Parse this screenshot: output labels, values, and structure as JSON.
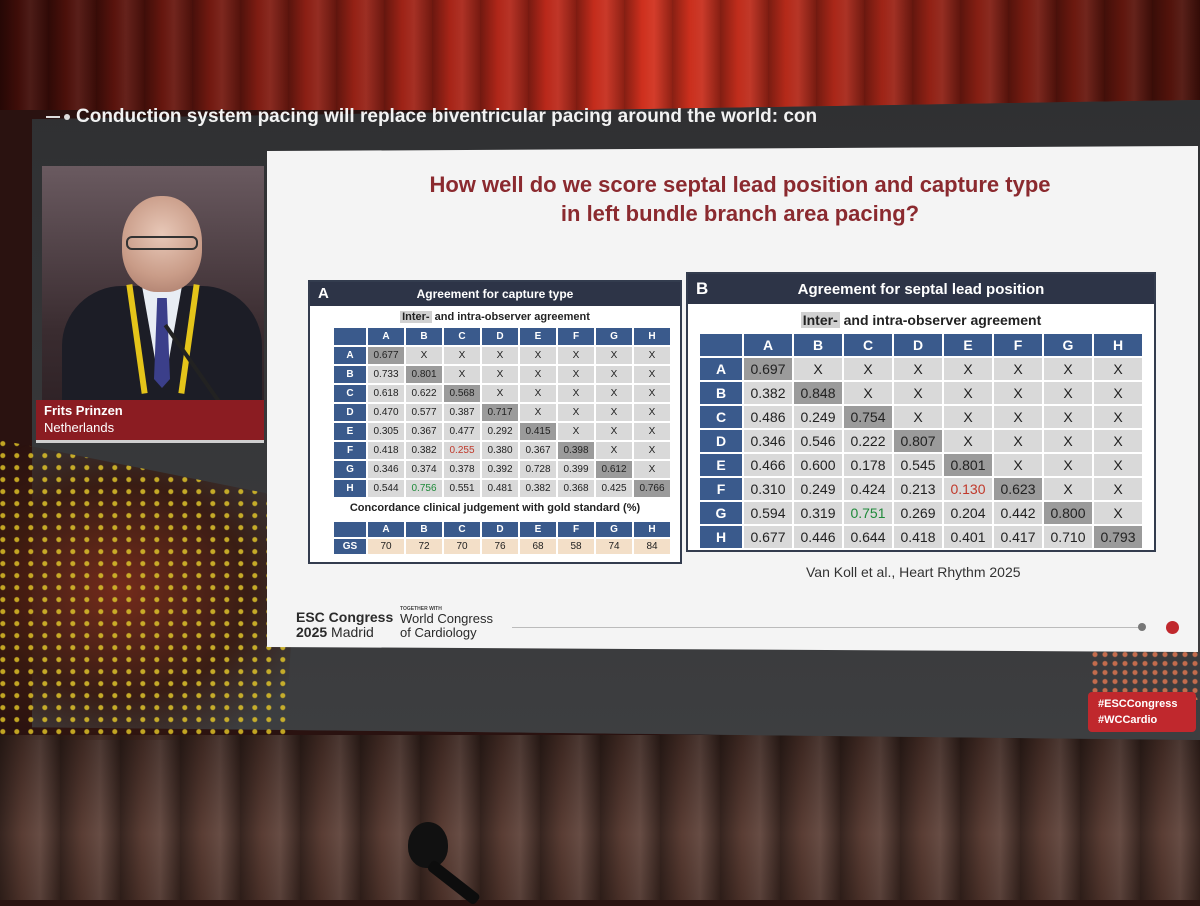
{
  "slide": {
    "session_title": "Conduction system pacing will replace biventricular pacing around the world: con",
    "content_title_line1": "How well do we score septal lead position and capture type",
    "content_title_line2": "in left bundle branch area pacing?",
    "citation": "Van Koll et al., Heart Rhythm 2025"
  },
  "speaker": {
    "name": "Frits Prinzen",
    "country": "Netherlands"
  },
  "panel_a": {
    "letter": "A",
    "title": "Agreement for capture type",
    "subtitle_highlight": "Inter-",
    "subtitle_rest": " and intra-observer agreement",
    "columns": [
      "A",
      "B",
      "C",
      "D",
      "E",
      "F",
      "G",
      "H"
    ],
    "rows": [
      {
        "label": "A",
        "cells": [
          "0.677",
          "X",
          "X",
          "X",
          "X",
          "X",
          "X",
          "X"
        ]
      },
      {
        "label": "B",
        "cells": [
          "0.733",
          "0.801",
          "X",
          "X",
          "X",
          "X",
          "X",
          "X"
        ]
      },
      {
        "label": "C",
        "cells": [
          "0.618",
          "0.622",
          "0.568",
          "X",
          "X",
          "X",
          "X",
          "X"
        ]
      },
      {
        "label": "D",
        "cells": [
          "0.470",
          "0.577",
          "0.387",
          "0.717",
          "X",
          "X",
          "X",
          "X"
        ]
      },
      {
        "label": "E",
        "cells": [
          "0.305",
          "0.367",
          "0.477",
          "0.292",
          "0.415",
          "X",
          "X",
          "X"
        ]
      },
      {
        "label": "F",
        "cells": [
          "0.418",
          "0.382",
          "0.255",
          "0.380",
          "0.367",
          "0.398",
          "X",
          "X"
        ]
      },
      {
        "label": "G",
        "cells": [
          "0.346",
          "0.374",
          "0.378",
          "0.392",
          "0.728",
          "0.399",
          "0.612",
          "X"
        ]
      },
      {
        "label": "H",
        "cells": [
          "0.544",
          "0.756",
          "0.551",
          "0.481",
          "0.382",
          "0.368",
          "0.425",
          "0.766"
        ]
      }
    ],
    "red_cells": [
      [
        5,
        2
      ]
    ],
    "green_cells": [
      [
        7,
        1
      ]
    ],
    "gs_title": "Concordance clinical judgement with gold standard (%)",
    "gs_row_label": "GS",
    "gs_values": [
      "70",
      "72",
      "70",
      "76",
      "68",
      "58",
      "74",
      "84"
    ]
  },
  "panel_b": {
    "letter": "B",
    "title": "Agreement for septal lead position",
    "subtitle_highlight": "Inter-",
    "subtitle_rest": " and intra-observer agreement",
    "columns": [
      "A",
      "B",
      "C",
      "D",
      "E",
      "F",
      "G",
      "H"
    ],
    "rows": [
      {
        "label": "A",
        "cells": [
          "0.697",
          "X",
          "X",
          "X",
          "X",
          "X",
          "X",
          "X"
        ]
      },
      {
        "label": "B",
        "cells": [
          "0.382",
          "0.848",
          "X",
          "X",
          "X",
          "X",
          "X",
          "X"
        ]
      },
      {
        "label": "C",
        "cells": [
          "0.486",
          "0.249",
          "0.754",
          "X",
          "X",
          "X",
          "X",
          "X"
        ]
      },
      {
        "label": "D",
        "cells": [
          "0.346",
          "0.546",
          "0.222",
          "0.807",
          "X",
          "X",
          "X",
          "X"
        ]
      },
      {
        "label": "E",
        "cells": [
          "0.466",
          "0.600",
          "0.178",
          "0.545",
          "0.801",
          "X",
          "X",
          "X"
        ]
      },
      {
        "label": "F",
        "cells": [
          "0.310",
          "0.249",
          "0.424",
          "0.213",
          "0.130",
          "0.623",
          "X",
          "X"
        ]
      },
      {
        "label": "G",
        "cells": [
          "0.594",
          "0.319",
          "0.751",
          "0.269",
          "0.204",
          "0.442",
          "0.800",
          "X"
        ]
      },
      {
        "label": "H",
        "cells": [
          "0.677",
          "0.446",
          "0.644",
          "0.418",
          "0.401",
          "0.417",
          "0.710",
          "0.793"
        ]
      }
    ],
    "red_cells": [
      [
        5,
        4
      ]
    ],
    "green_cells": [
      [
        6,
        2
      ]
    ]
  },
  "footer": {
    "logo1_line1": "ESC Congress",
    "logo1_year": "2025",
    "logo1_city": "Madrid",
    "together_with": "TOGETHER WITH",
    "logo2_line1": "World Congress",
    "logo2_line2": "of Cardiology"
  },
  "hashtags": [
    "#ESCCongress",
    "#WCCardio"
  ]
}
